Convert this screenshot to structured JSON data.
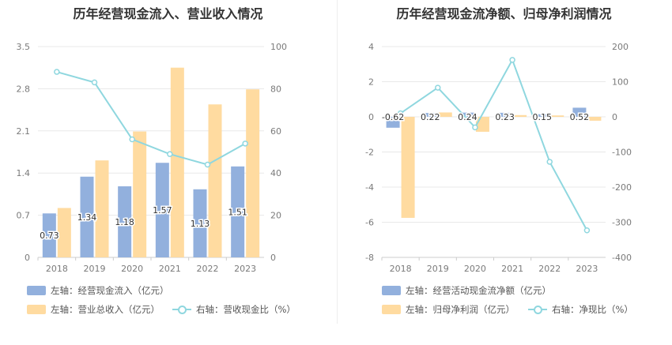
{
  "colors": {
    "bar_blue": "#92b0dd",
    "bar_orange": "#ffdba0",
    "line_cyan": "#8fd7df",
    "grid": "#e8e8e8"
  },
  "chart_data": [
    {
      "type": "bar",
      "title": "历年经营现金流入、营业收入情况",
      "categories": [
        "2018",
        "2019",
        "2020",
        "2021",
        "2022",
        "2023"
      ],
      "left_axis": {
        "ticks": [
          "0",
          "0.7",
          "1.4",
          "2.1",
          "2.8",
          "3.5"
        ],
        "ylim": [
          0,
          3.5
        ]
      },
      "right_axis": {
        "ticks": [
          "0",
          "20",
          "40",
          "60",
          "80",
          "100"
        ],
        "ylim": [
          0,
          100
        ]
      },
      "series": [
        {
          "name": "左轴：经营现金流入（亿元）",
          "kind": "bar",
          "axis": "left",
          "values": [
            0.73,
            1.34,
            1.18,
            1.57,
            1.13,
            1.51
          ],
          "labels": [
            "0.73",
            "1.34",
            "1.18",
            "1.57",
            "1.13",
            "1.51"
          ]
        },
        {
          "name": "左轴：营业总收入（亿元）",
          "kind": "bar",
          "axis": "left",
          "values": [
            0.82,
            1.61,
            2.09,
            3.15,
            2.54,
            2.79
          ]
        },
        {
          "name": "右轴：营收现金比（%）",
          "kind": "line",
          "axis": "right",
          "values": [
            88,
            83,
            56,
            49,
            44,
            54
          ]
        }
      ],
      "grid": true,
      "legend": "bottom"
    },
    {
      "type": "bar",
      "title": "历年经营现金流净额、归母净利润情况",
      "categories": [
        "2018",
        "2019",
        "2020",
        "2021",
        "2022",
        "2023"
      ],
      "left_axis": {
        "ticks": [
          "-8",
          "-6",
          "-4",
          "-2",
          "0",
          "2",
          "4"
        ],
        "ylim": [
          -8,
          4
        ]
      },
      "right_axis": {
        "ticks": [
          "-400",
          "-300",
          "-200",
          "-100",
          "0",
          "100",
          "200"
        ],
        "ylim": [
          -400,
          200
        ]
      },
      "series": [
        {
          "name": "左轴：经营活动现金流净额（亿元）",
          "kind": "bar",
          "axis": "left",
          "values": [
            -0.62,
            0.22,
            0.24,
            0.23,
            0.15,
            0.52
          ],
          "labels": [
            "-0.62",
            "0.22",
            "0.24",
            "0.23",
            "0.15",
            "0.52"
          ]
        },
        {
          "name": "左轴：归母净利润（亿元）",
          "kind": "bar",
          "axis": "left",
          "values": [
            -5.75,
            0.25,
            -0.85,
            0.1,
            0.08,
            -0.22
          ]
        },
        {
          "name": "右轴：净现比（%）",
          "kind": "line",
          "axis": "right",
          "values": [
            10,
            83,
            -30,
            162,
            -128,
            -323
          ]
        }
      ],
      "grid": true,
      "legend": "bottom"
    }
  ]
}
